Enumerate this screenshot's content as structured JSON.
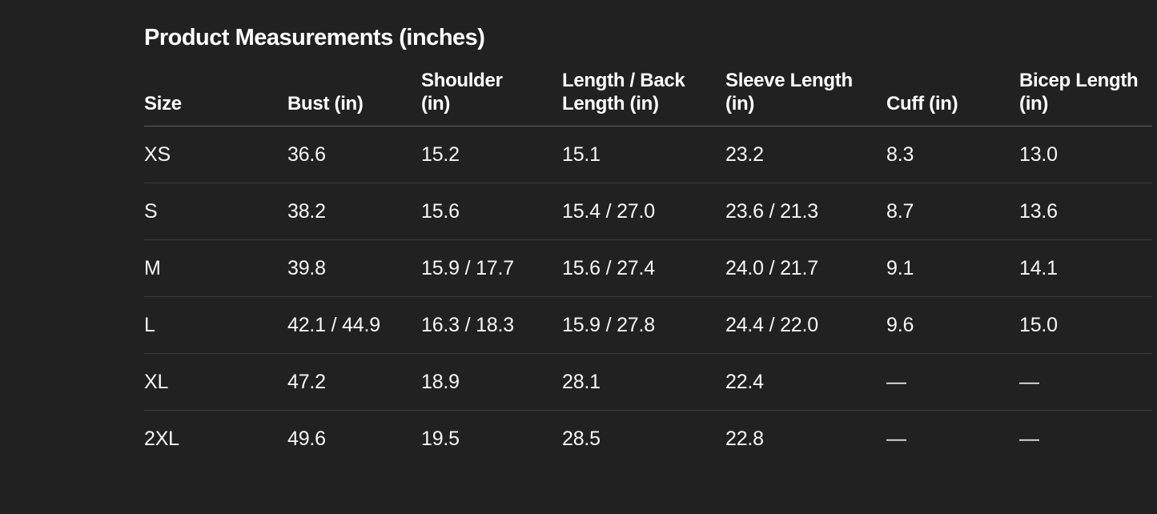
{
  "colors": {
    "background": "#212121",
    "text": "#fbfbfb",
    "header_divider": "#5e5e5e",
    "row_divider": "#3c3c3c"
  },
  "title": "Product Measurements (inches)",
  "table": {
    "columns": [
      "Size",
      "Bust (in)",
      "Shoulder\n(in)",
      "Length / Back\nLength (in)",
      "Sleeve Length\n(in)",
      "Cuff (in)",
      "Bicep Length\n(in)"
    ],
    "rows": [
      [
        "XS",
        "36.6",
        "15.2",
        "15.1",
        "23.2",
        "8.3",
        "13.0"
      ],
      [
        "S",
        "38.2",
        "15.6",
        "15.4 / 27.0",
        "23.6 / 21.3",
        "8.7",
        "13.6"
      ],
      [
        "M",
        "39.8",
        "15.9 / 17.7",
        "15.6 / 27.4",
        "24.0 / 21.7",
        "9.1",
        "14.1"
      ],
      [
        "L",
        "42.1 / 44.9",
        "16.3 / 18.3",
        "15.9 / 27.8",
        "24.4 / 22.0",
        "9.6",
        "15.0"
      ],
      [
        "XL",
        "47.2",
        "18.9",
        "28.1",
        "22.4",
        "—",
        "—"
      ],
      [
        "2XL",
        "49.6",
        "19.5",
        "28.5",
        "22.8",
        "—",
        "—"
      ]
    ]
  }
}
